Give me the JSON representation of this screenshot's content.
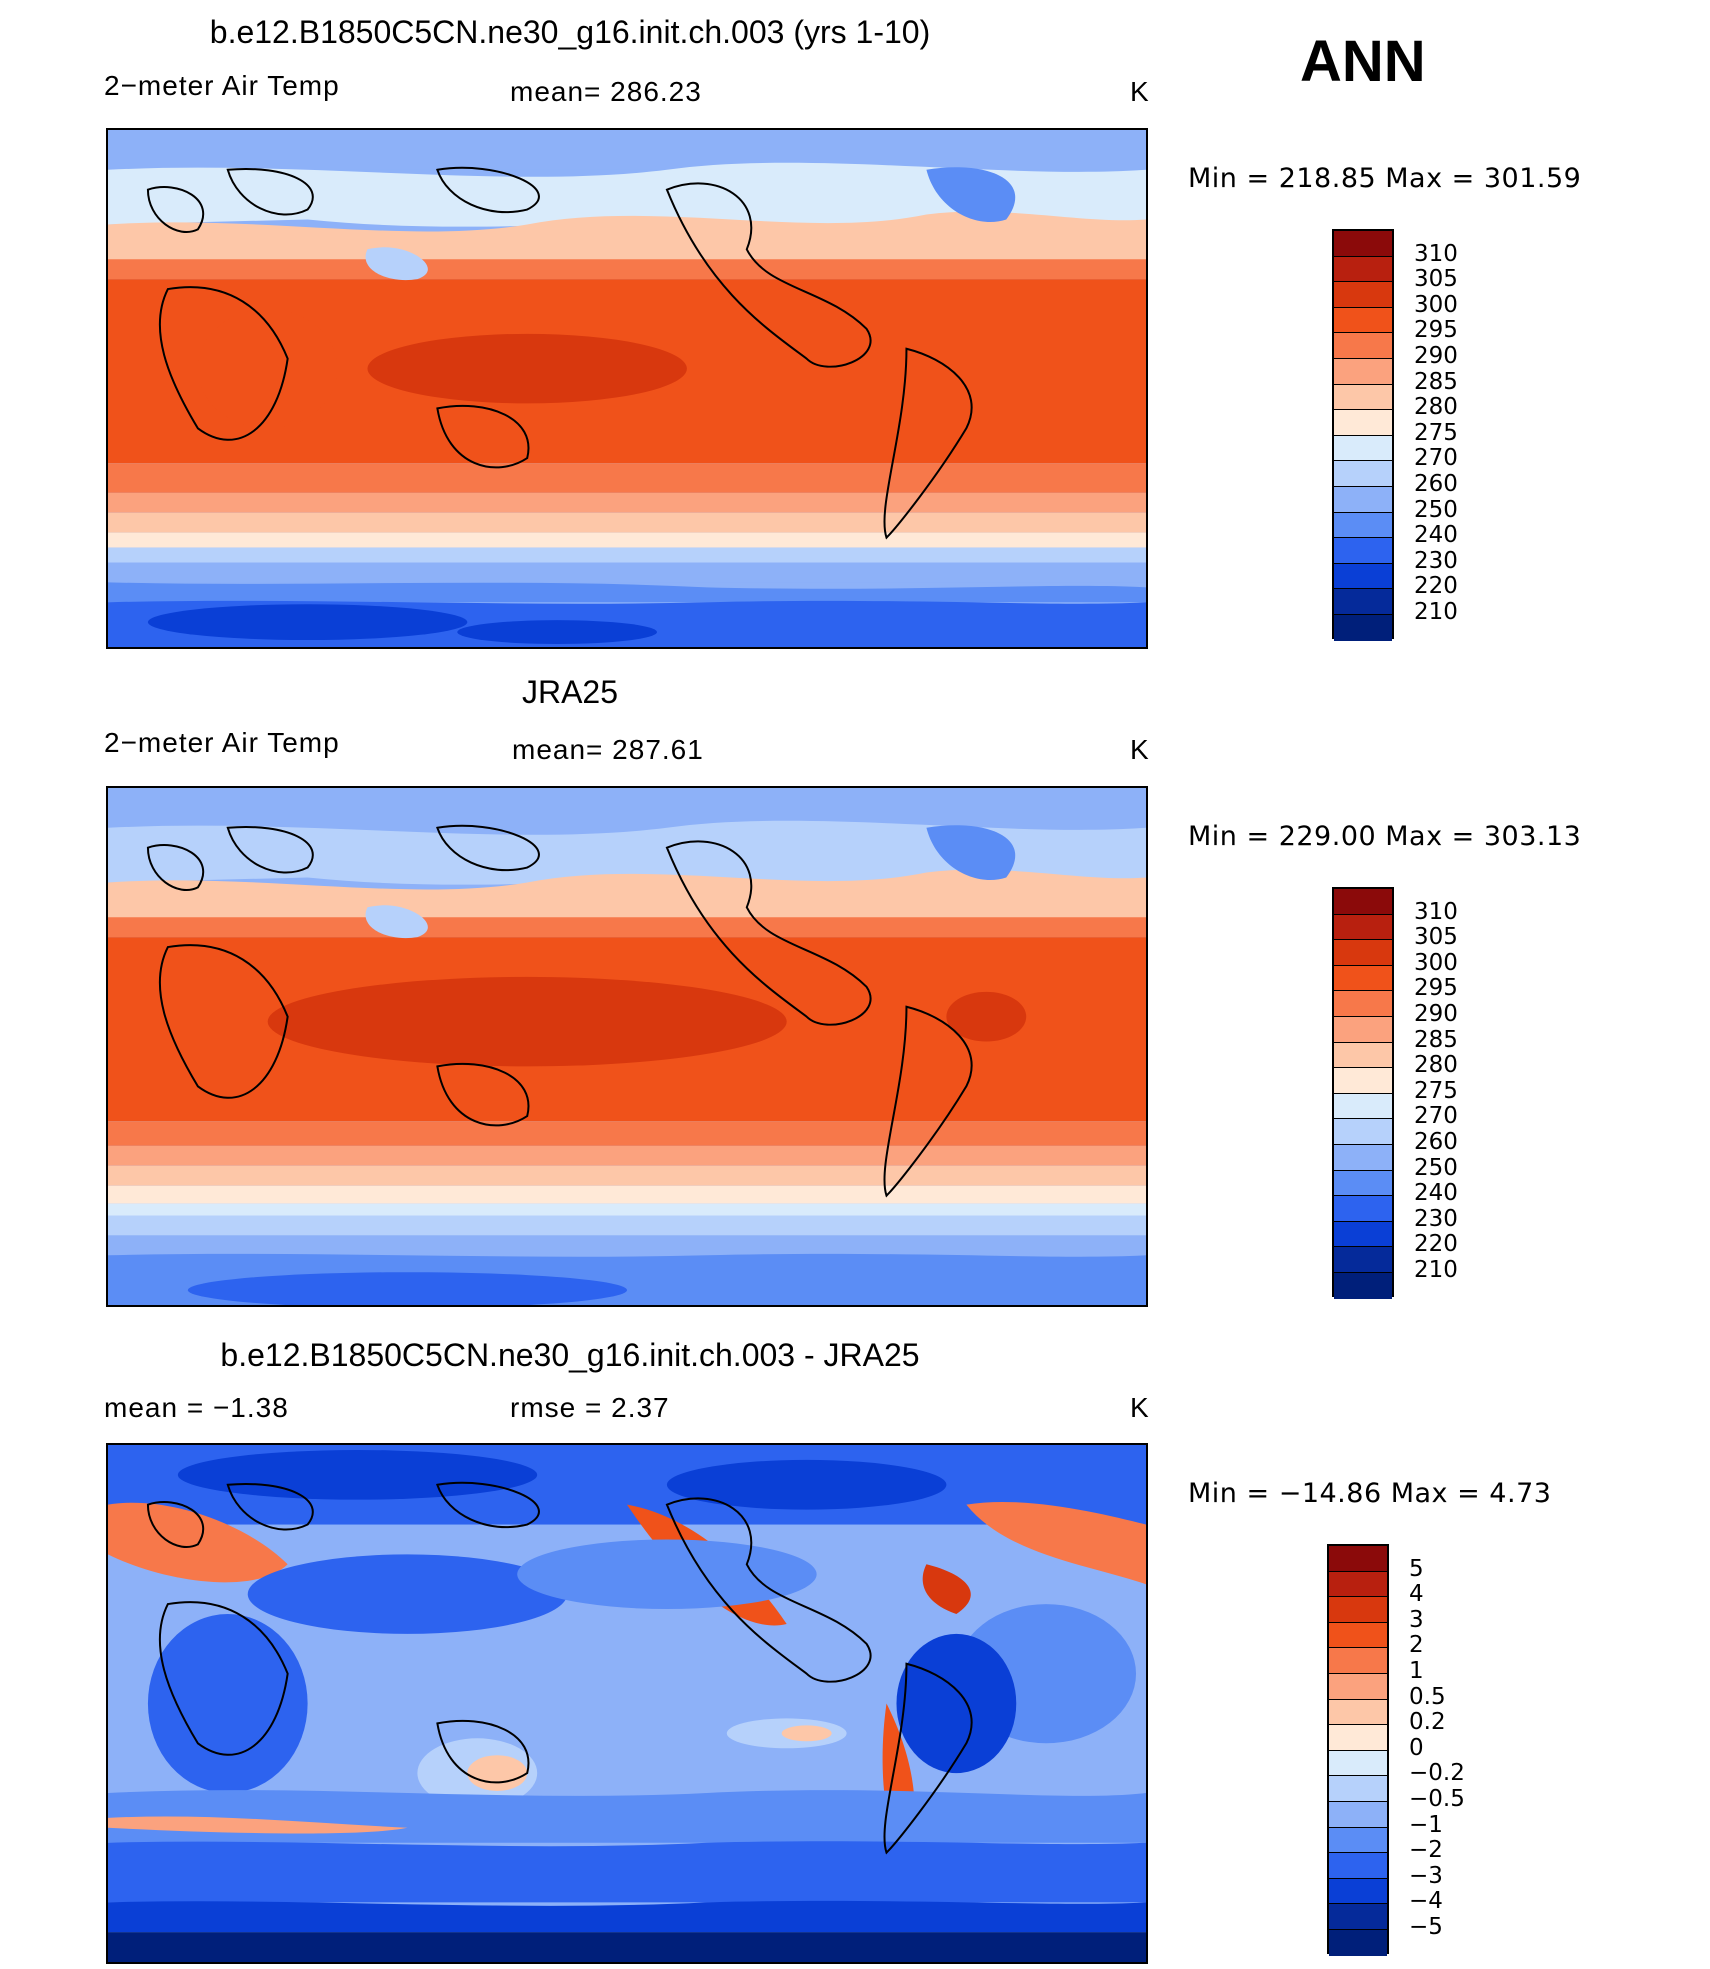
{
  "annual_label": "ANN",
  "panels": [
    {
      "title": "b.e12.B1850C5CN.ne30_g16.init.ch.003 (yrs 1-10)",
      "left_label": "2−meter Air Temp",
      "center_label": "mean=  286.23",
      "units": "K",
      "minmax": "Min  =  218.85  Max  =  301.59",
      "colorbar_levels": [
        "310",
        "305",
        "300",
        "295",
        "290",
        "285",
        "280",
        "275",
        "270",
        "260",
        "250",
        "240",
        "230",
        "220",
        "210"
      ],
      "colorbar_colors": [
        "#8b0a0a",
        "#b8200f",
        "#d8380e",
        "#f0521a",
        "#f7784a",
        "#fba27e",
        "#fdc7a8",
        "#ffe9d7",
        "#d9ebfb",
        "#b6d1fb",
        "#8db1f8",
        "#5b8df5",
        "#2d63ef",
        "#0a3fd6",
        "#052a9a",
        "#001f7a"
      ]
    },
    {
      "title": "JRA25",
      "left_label": "2−meter Air Temp",
      "center_label": "mean=  287.61",
      "units": "K",
      "minmax": "Min  =  229.00  Max  =  303.13",
      "colorbar_levels": [
        "310",
        "305",
        "300",
        "295",
        "290",
        "285",
        "280",
        "275",
        "270",
        "260",
        "250",
        "240",
        "230",
        "220",
        "210"
      ],
      "colorbar_colors": [
        "#8b0a0a",
        "#b8200f",
        "#d8380e",
        "#f0521a",
        "#f7784a",
        "#fba27e",
        "#fdc7a8",
        "#ffe9d7",
        "#d9ebfb",
        "#b6d1fb",
        "#8db1f8",
        "#5b8df5",
        "#2d63ef",
        "#0a3fd6",
        "#052a9a",
        "#001f7a"
      ]
    },
    {
      "title": "b.e12.B1850C5CN.ne30_g16.init.ch.003 - JRA25",
      "left_label": "mean  =     −1.38",
      "center_label": "rmse  =      2.37",
      "units": "K",
      "minmax": "Min  =  −14.86  Max  =      4.73",
      "colorbar_levels": [
        "5",
        "4",
        "3",
        "2",
        "1",
        "0.5",
        "0.2",
        "0",
        "−0.2",
        "−0.5",
        "−1",
        "−2",
        "−3",
        "−4",
        "−5"
      ],
      "colorbar_colors": [
        "#8b0a0a",
        "#b8200f",
        "#d8380e",
        "#f0521a",
        "#f7784a",
        "#fba27e",
        "#fdc7a8",
        "#ffe9d7",
        "#d9ebfb",
        "#b6d1fb",
        "#8db1f8",
        "#5b8df5",
        "#2d63ef",
        "#0a3fd6",
        "#052a9a",
        "#001f7a"
      ]
    }
  ]
}
